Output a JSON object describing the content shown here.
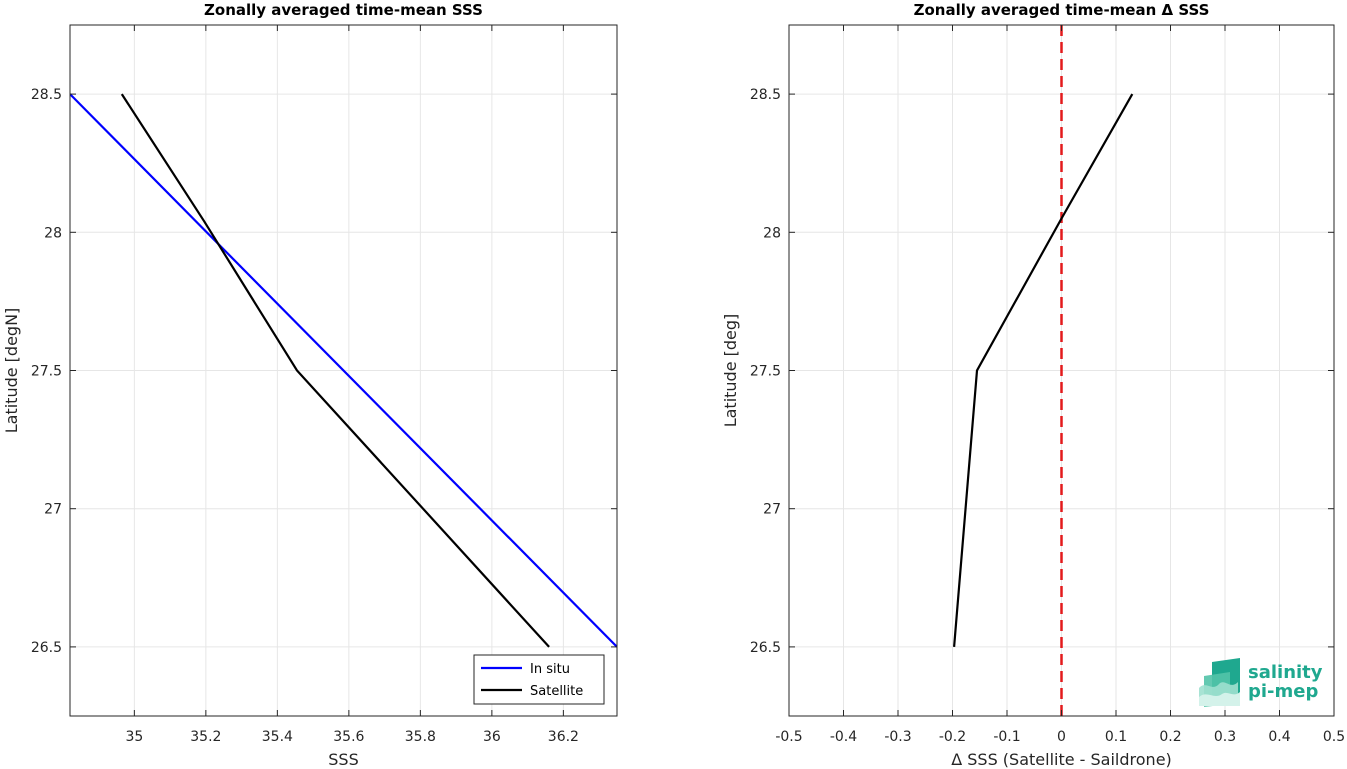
{
  "chart_data": [
    {
      "type": "line",
      "title": "Zonally averaged time-mean SSS",
      "xlabel": "SSS",
      "ylabel": "Latitude [degN]",
      "xlim": [
        34.82,
        36.35
      ],
      "ylim": [
        26.25,
        28.75
      ],
      "xticks": [
        35,
        35.2,
        35.4,
        35.6,
        35.8,
        36,
        36.2
      ],
      "xtick_labels": [
        "35",
        "35.2",
        "35.4",
        "35.6",
        "35.8",
        "36",
        "36.2"
      ],
      "yticks": [
        26.5,
        27,
        27.5,
        28,
        28.5
      ],
      "ytick_labels": [
        "26.5",
        "27",
        "27.5",
        "28",
        "28.5"
      ],
      "grid": true,
      "legend": {
        "location": "bottom-right",
        "entries": [
          "In situ",
          "Satellite"
        ]
      },
      "series": [
        {
          "name": "In situ",
          "color": "#0000ff",
          "x": [
            34.82,
            36.35
          ],
          "y": [
            28.5,
            26.5
          ]
        },
        {
          "name": "Satellite",
          "color": "#000000",
          "x": [
            34.965,
            35.195,
            35.455,
            36.16
          ],
          "y": [
            28.5,
            28.04,
            27.5,
            26.5
          ]
        }
      ]
    },
    {
      "type": "line",
      "title": "Zonally averaged time-mean Δ SSS",
      "xlabel": "Δ SSS (Satellite - Saildrone)",
      "ylabel": "Latitude [deg]",
      "xlim": [
        -0.5,
        0.5
      ],
      "ylim": [
        26.25,
        28.75
      ],
      "xticks": [
        -0.5,
        -0.4,
        -0.3,
        -0.2,
        -0.1,
        0,
        0.1,
        0.2,
        0.3,
        0.4,
        0.5
      ],
      "xtick_labels": [
        "-0.5",
        "-0.4",
        "-0.3",
        "-0.2",
        "-0.1",
        "0",
        "0.1",
        "0.2",
        "0.3",
        "0.4",
        "0.5"
      ],
      "yticks": [
        26.5,
        27,
        27.5,
        28,
        28.5
      ],
      "ytick_labels": [
        "26.5",
        "27",
        "27.5",
        "28",
        "28.5"
      ],
      "grid": true,
      "reference_line": {
        "x": 0,
        "color": "#e31a1c",
        "style": "dashed"
      },
      "series": [
        {
          "color": "#000000",
          "x": [
            -0.197,
            -0.155,
            0.0,
            0.13
          ],
          "y": [
            26.5,
            27.5,
            28.05,
            28.5
          ]
        }
      ]
    }
  ],
  "logo": {
    "line1": "salinity",
    "line2": "pi-mep",
    "icon": "salinity-wave-logo-icon",
    "color": "#1fa88f"
  }
}
